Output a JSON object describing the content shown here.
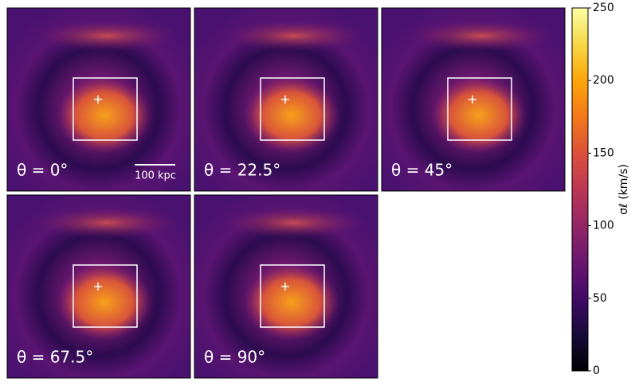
{
  "chart_data": {
    "type": "image-grid",
    "panels": [
      {
        "label": "θ = 0°"
      },
      {
        "label": "θ = 22.5°"
      },
      {
        "label": "θ = 45°"
      },
      {
        "label": "θ = 67.5°"
      },
      {
        "label": "θ = 90°"
      }
    ],
    "scale_bar": "100 kpc",
    "colorbar": {
      "label": "σℓ (km/s)",
      "lim": [
        0,
        250
      ],
      "ticks": [
        0,
        50,
        100,
        150,
        200,
        250
      ],
      "colormap": "inferno"
    }
  }
}
